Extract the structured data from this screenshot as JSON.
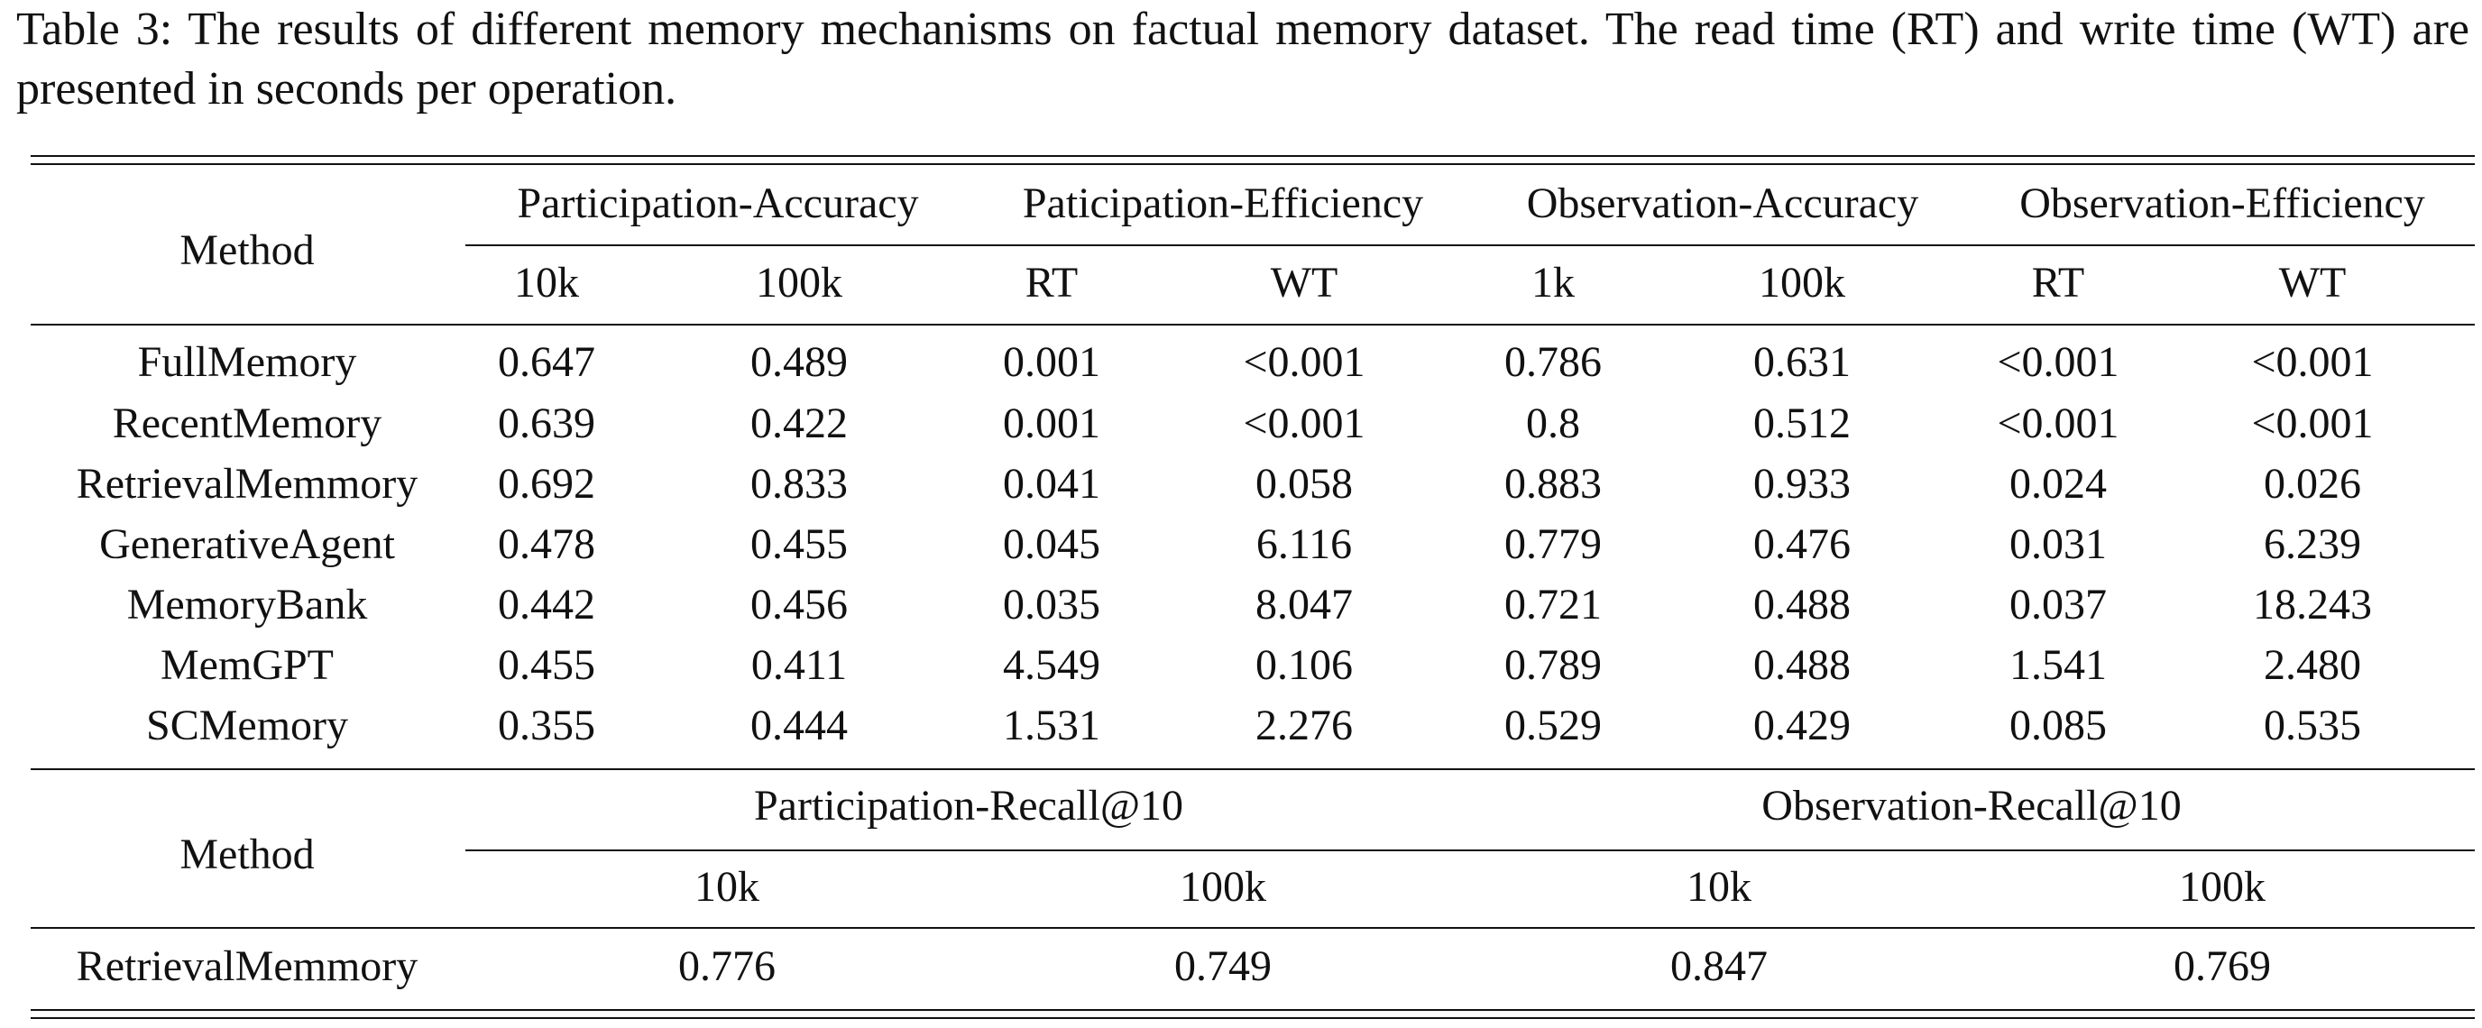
{
  "caption": "Table 3: The results of different memory mechanisms on factual memory dataset. The read time (RT) and write time (WT) are presented in seconds per operation.",
  "top_table": {
    "method_header": "Method",
    "groups": [
      "Participation-Accuracy",
      "Paticipation-Efficiency",
      "Observation-Accuracy",
      "Observation-Efficiency"
    ],
    "subheaders": [
      "10k",
      "100k",
      "RT",
      "WT",
      "1k",
      "100k",
      "RT",
      "WT"
    ],
    "rows": [
      {
        "method": "FullMemory",
        "values": [
          "0.647",
          "0.489",
          "0.001",
          "<0.001",
          "0.786",
          "0.631",
          "<0.001",
          "<0.001"
        ]
      },
      {
        "method": "RecentMemory",
        "values": [
          "0.639",
          "0.422",
          "0.001",
          "<0.001",
          "0.8",
          "0.512",
          "<0.001",
          "<0.001"
        ]
      },
      {
        "method": "RetrievalMemmory",
        "values": [
          "0.692",
          "0.833",
          "0.041",
          "0.058",
          "0.883",
          "0.933",
          "0.024",
          "0.026"
        ]
      },
      {
        "method": "GenerativeAgent",
        "values": [
          "0.478",
          "0.455",
          "0.045",
          "6.116",
          "0.779",
          "0.476",
          "0.031",
          "6.239"
        ]
      },
      {
        "method": "MemoryBank",
        "values": [
          "0.442",
          "0.456",
          "0.035",
          "8.047",
          "0.721",
          "0.488",
          "0.037",
          "18.243"
        ]
      },
      {
        "method": "MemGPT",
        "values": [
          "0.455",
          "0.411",
          "4.549",
          "0.106",
          "0.789",
          "0.488",
          "1.541",
          "2.480"
        ]
      },
      {
        "method": "SCMemory",
        "values": [
          "0.355",
          "0.444",
          "1.531",
          "2.276",
          "0.529",
          "0.429",
          "0.085",
          "0.535"
        ]
      }
    ]
  },
  "bottom_table": {
    "method_header": "Method",
    "groups": [
      "Participation-Recall@10",
      "Observation-Recall@10"
    ],
    "subheaders": [
      "10k",
      "100k",
      "10k",
      "100k"
    ],
    "rows": [
      {
        "method": "RetrievalMemmory",
        "values": [
          "0.776",
          "0.749",
          "0.847",
          "0.769"
        ]
      }
    ]
  }
}
